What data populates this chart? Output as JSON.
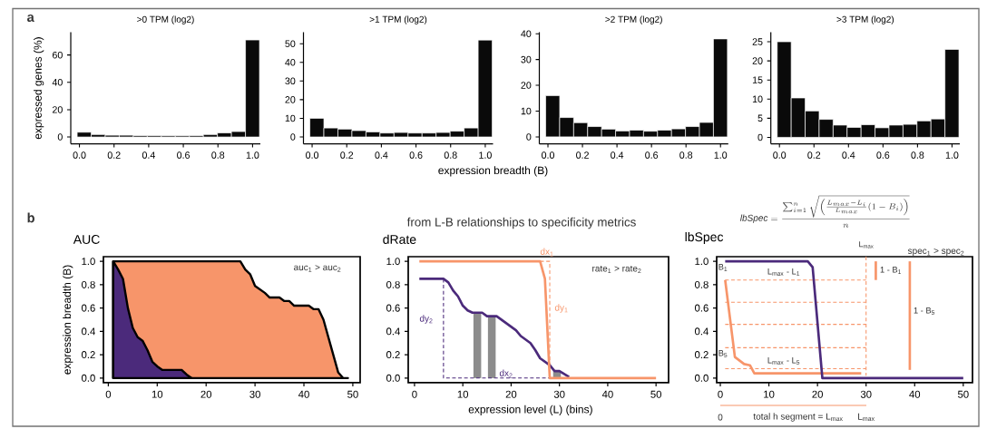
{
  "chart_data": [
    {
      "type": "histogram",
      "title": ">0 TPM (log2)",
      "ylabel": "expressed genes (%)",
      "annotations": [
        "a"
      ],
      "color": "#0a0a0a",
      "bins": [
        -0.013,
        0.068,
        0.149,
        0.23,
        0.311,
        0.392,
        0.473,
        0.554,
        0.635,
        0.716,
        0.797,
        0.878,
        0.959,
        1.04
      ],
      "values": [
        3.5,
        1.8,
        1.3,
        1.3,
        1.0,
        1.0,
        0.9,
        0.9,
        1.0,
        1.8,
        3.0,
        4.0,
        71
      ],
      "xlim": [
        -0.05,
        1.045
      ],
      "ylim": [
        -5,
        76.7
      ],
      "yticks": [
        0,
        20,
        40,
        60
      ],
      "xticks": [
        {
          "value": 0,
          "label": "0.0"
        },
        {
          "value": 0.2,
          "label": "0.2"
        },
        {
          "value": 0.4,
          "label": "0.4"
        },
        {
          "value": 0.6,
          "label": "0.6"
        },
        {
          "value": 0.8,
          "label": "0.8"
        },
        {
          "value": 1,
          "label": "1.0"
        }
      ]
    },
    {
      "type": "histogram",
      "title": ">1 TPM (log2)",
      "xlabel": "expression breadth (B)",
      "color": "#0a0a0a",
      "bins": [
        -0.013,
        0.068,
        0.149,
        0.23,
        0.311,
        0.392,
        0.473,
        0.554,
        0.635,
        0.716,
        0.797,
        0.878,
        0.959,
        1.04
      ],
      "values": [
        10,
        4.8,
        4.2,
        3.4,
        2.7,
        2.1,
        2.4,
        2.1,
        2.1,
        2.4,
        3.1,
        4.8,
        52
      ],
      "xlim": [
        -0.05,
        1.045
      ],
      "ylim": [
        -3.7,
        56.2
      ],
      "yticks": [
        0,
        10,
        20,
        30,
        40,
        50
      ],
      "xticks": [
        {
          "value": 0,
          "label": "0.0"
        },
        {
          "value": 0.2,
          "label": "0.2"
        },
        {
          "value": 0.4,
          "label": "0.4"
        },
        {
          "value": 0.6,
          "label": "0.6"
        },
        {
          "value": 0.8,
          "label": "0.8"
        },
        {
          "value": 1,
          "label": "1.0"
        }
      ]
    },
    {
      "type": "histogram",
      "title": ">2 TPM (log2)",
      "color": "#0a0a0a",
      "bins": [
        -0.013,
        0.068,
        0.149,
        0.23,
        0.311,
        0.392,
        0.473,
        0.554,
        0.635,
        0.716,
        0.797,
        0.878,
        0.959,
        1.04
      ],
      "values": [
        16,
        7.5,
        5.5,
        4.0,
        3.0,
        2.3,
        2.6,
        2.2,
        2.6,
        3.1,
        4.0,
        5.6,
        38
      ],
      "xlim": [
        -0.05,
        1.045
      ],
      "ylim": [
        -2.7,
        40.6
      ],
      "yticks": [
        0,
        10,
        20,
        30,
        40
      ],
      "xticks": [
        {
          "value": 0,
          "label": "0.0"
        },
        {
          "value": 0.2,
          "label": "0.2"
        },
        {
          "value": 0.4,
          "label": "0.4"
        },
        {
          "value": 0.6,
          "label": "0.6"
        },
        {
          "value": 0.8,
          "label": "0.8"
        },
        {
          "value": 1,
          "label": "1.0"
        }
      ]
    },
    {
      "type": "histogram",
      "title": ">3 TPM (log2)",
      "color": "#0a0a0a",
      "bins": [
        -0.013,
        0.068,
        0.149,
        0.23,
        0.311,
        0.392,
        0.473,
        0.554,
        0.635,
        0.716,
        0.797,
        0.878,
        0.959,
        1.04
      ],
      "values": [
        25,
        10.3,
        6.9,
        4.7,
        3.2,
        2.6,
        3.3,
        2.5,
        3.2,
        3.4,
        4.3,
        4.8,
        23
      ],
      "xlim": [
        -0.05,
        1.045
      ],
      "ylim": [
        -1.7,
        27.5
      ],
      "yticks": [
        0,
        5,
        10,
        15,
        20,
        25
      ],
      "xticks": [
        {
          "value": 0,
          "label": "0.0"
        },
        {
          "value": 0.2,
          "label": "0.2"
        },
        {
          "value": 0.4,
          "label": "0.4"
        },
        {
          "value": 0.6,
          "label": "0.6"
        },
        {
          "value": 0.8,
          "label": "0.8"
        },
        {
          "value": 1,
          "label": "1.0"
        }
      ]
    },
    {
      "type": "area",
      "title": "AUC",
      "ylabel": "expression breadth (B)",
      "annotations": [
        "b",
        "auc$_{1}$ > auc$_{2}$"
      ],
      "xlim": [
        -1,
        51.5
      ],
      "ylim": [
        -0.04,
        1.04
      ],
      "xticks": [
        0,
        10,
        20,
        30,
        40,
        50
      ],
      "yticks": [
        {
          "value": 0,
          "label": "0.0"
        },
        {
          "value": 0.2,
          "label": "0.2"
        },
        {
          "value": 0.4,
          "label": "0.4"
        },
        {
          "value": 0.6,
          "label": "0.6"
        },
        {
          "value": 0.8,
          "label": "0.8"
        },
        {
          "value": 1,
          "label": "1.0"
        }
      ],
      "series": [
        {
          "color": "#f7956a",
          "x": [
            1,
            27,
            28,
            29,
            30,
            31,
            32,
            33,
            35,
            36,
            37,
            38,
            41,
            42,
            43,
            44,
            45,
            46,
            47,
            48,
            49
          ],
          "values": [
            1,
            1,
            0.93,
            0.89,
            0.79,
            0.76,
            0.73,
            0.69,
            0.69,
            0.66,
            0.66,
            0.62,
            0.62,
            0.59,
            0.59,
            0.5,
            0.35,
            0.2,
            0.05,
            0,
            0
          ]
        },
        {
          "color": "#4b2a7b",
          "x": [
            1,
            2,
            3,
            4,
            5,
            6,
            7,
            8,
            9,
            10,
            11,
            15,
            16,
            17
          ],
          "values": [
            1,
            0.93,
            0.85,
            0.6,
            0.43,
            0.35,
            0.32,
            0.24,
            0.14,
            0.1,
            0.07,
            0.07,
            0.03,
            0
          ]
        }
      ]
    },
    {
      "type": "line",
      "title": "dRate",
      "xlabel": "expression level (L) (bins)",
      "annotations": [
        "from L-B relationships to specificity metrics",
        "rate$_{1}$ > rate$_{2}$",
        "dx$_{1}$",
        "dy$_{1}$",
        "dy$_{2}$",
        "dx$_{2}$"
      ],
      "xlim": [
        -1.3,
        52.6
      ],
      "ylim": [
        -0.04,
        1.04
      ],
      "xticks": [
        0,
        10,
        20,
        30,
        40,
        50
      ],
      "yticks": [
        {
          "value": 0,
          "label": "0.0"
        },
        {
          "value": 0.2,
          "label": "0.2"
        },
        {
          "value": 0.4,
          "label": "0.4"
        },
        {
          "value": 0.6,
          "label": "0.6"
        },
        {
          "value": 0.8,
          "label": "0.8"
        },
        {
          "value": 1,
          "label": "1.0"
        }
      ],
      "series": [
        {
          "type": "bar",
          "color": "#8c8c8c",
          "x": [
            13,
            16,
            29.5
          ],
          "values": [
            0.56,
            0.53,
            0.06
          ]
        },
        {
          "color": "#4b2a7b",
          "line_style": "dashed",
          "x": [
            6,
            6,
            32
          ],
          "values": [
            0.85,
            0,
            0
          ]
        },
        {
          "color": "#f7956a",
          "line_style": "dashed",
          "x": [
            26,
            28,
            28
          ],
          "values": [
            1,
            1,
            0
          ]
        },
        {
          "color": "#4b2a7b",
          "x": [
            1,
            6,
            7,
            8,
            9,
            10,
            11,
            12,
            14,
            15,
            17,
            19,
            21,
            22,
            24,
            25,
            26,
            28,
            29,
            30,
            32
          ],
          "values": [
            0.85,
            0.85,
            0.82,
            0.75,
            0.7,
            0.62,
            0.58,
            0.56,
            0.56,
            0.53,
            0.53,
            0.47,
            0.41,
            0.36,
            0.3,
            0.24,
            0.17,
            0.11,
            0.06,
            0.06,
            0.01
          ]
        },
        {
          "color": "#f7956a",
          "x": [
            1,
            26,
            27,
            28,
            50
          ],
          "values": [
            1,
            1,
            0.85,
            0,
            0
          ]
        }
      ]
    },
    {
      "type": "line",
      "title": "lbSpec",
      "annotations": [
        "\\mathit{lbSpec}=\\frac{\\sum_{i=1}^{n}\\sqrt{\\left(\\frac{L_{max}-L_{i}}{L_{max}}(1-B_{i})\\right)}}{n}",
        "spec$_{1}$ > spec$_{2}$",
        "L$_{max}$",
        "0",
        "total h segment = L$_{max}$",
        "L$_{max}$",
        "B$_{1}$",
        "B$_{5}$",
        "L$_{max}$ - L$_{1}$",
        "L$_{max}$ - L$_{5}$",
        "1 - B$_{1}$",
        "1 - B$_{5}$"
      ],
      "xlim": [
        -0.75,
        51.9
      ],
      "ylim": [
        -0.04,
        1.04
      ],
      "xticks": [
        0,
        10,
        20,
        30,
        40,
        50
      ],
      "yticks": [
        {
          "value": 0,
          "label": "0.0"
        },
        {
          "value": 0.2,
          "label": "0.2"
        },
        {
          "value": 0.4,
          "label": "0.4"
        },
        {
          "value": 0.6,
          "label": "0.6"
        },
        {
          "value": 0.8,
          "label": "0.8"
        },
        {
          "value": 1,
          "label": "1.0"
        }
      ],
      "series": [
        {
          "color": "#f7956a",
          "line_style": "dashed",
          "x": [
            1,
            30
          ],
          "values": [
            0.84,
            0.84
          ]
        },
        {
          "color": "#f7956a",
          "line_style": "dashed",
          "x": [
            1,
            30
          ],
          "values": [
            0.65,
            0.65
          ]
        },
        {
          "color": "#f7956a",
          "line_style": "dashed",
          "x": [
            1,
            30
          ],
          "values": [
            0.46,
            0.46
          ]
        },
        {
          "color": "#f7956a",
          "line_style": "dashed",
          "x": [
            1,
            30
          ],
          "values": [
            0.26,
            0.26
          ]
        },
        {
          "color": "#f7956a",
          "line_style": "dashed",
          "x": [
            1,
            30
          ],
          "values": [
            0.08,
            0.08
          ]
        },
        {
          "color": "#f7956a",
          "line_style": "dashed",
          "x": [
            30,
            30
          ],
          "values": [
            1.04,
            0.02
          ]
        },
        {
          "color": "#f7956a",
          "x": [
            32,
            32
          ],
          "values": [
            0.84,
            1.0
          ]
        },
        {
          "color": "#f7956a",
          "x": [
            39,
            39
          ],
          "values": [
            0.07,
            1.0
          ]
        },
        {
          "color": "#f7956a",
          "x": [
            1,
            3,
            4.9,
            6.1,
            7,
            29
          ],
          "values": [
            0.84,
            0.18,
            0.12,
            0.11,
            0.04,
            0.04
          ]
        },
        {
          "color": "#4b2a7b",
          "x": [
            1,
            18,
            19,
            21,
            50
          ],
          "values": [
            1,
            1,
            0.95,
            0,
            0
          ]
        }
      ]
    }
  ]
}
